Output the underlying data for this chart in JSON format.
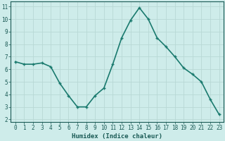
{
  "x": [
    0,
    1,
    2,
    3,
    4,
    5,
    6,
    7,
    8,
    9,
    10,
    11,
    12,
    13,
    14,
    15,
    16,
    17,
    18,
    19,
    20,
    21,
    22,
    23
  ],
  "y": [
    6.6,
    6.4,
    6.4,
    6.5,
    6.2,
    4.9,
    3.9,
    3.0,
    3.0,
    3.9,
    4.5,
    6.4,
    8.5,
    9.9,
    10.9,
    10.0,
    8.5,
    7.8,
    7.0,
    6.1,
    5.6,
    5.0,
    3.6,
    2.4
  ],
  "line_color": "#1a7a6e",
  "marker": "+",
  "marker_size": 3,
  "marker_lw": 1.0,
  "bg_color": "#ceecea",
  "grid_color_major": "#b8d8d5",
  "grid_color_minor": "#c8e8e5",
  "xlabel": "Humidex (Indice chaleur)",
  "xlim": [
    -0.5,
    23.5
  ],
  "ylim": [
    1.8,
    11.4
  ],
  "xtick_labels": [
    "0",
    "1",
    "2",
    "3",
    "4",
    "5",
    "6",
    "7",
    "8",
    "9",
    "10",
    "11",
    "12",
    "13",
    "14",
    "15",
    "16",
    "17",
    "18",
    "19",
    "20",
    "21",
    "22",
    "23"
  ],
  "ytick_values": [
    2,
    3,
    4,
    5,
    6,
    7,
    8,
    9,
    10,
    11
  ],
  "font_color": "#1a5a55",
  "linewidth": 1.2,
  "tick_fontsize": 5.5,
  "xlabel_fontsize": 6.5
}
